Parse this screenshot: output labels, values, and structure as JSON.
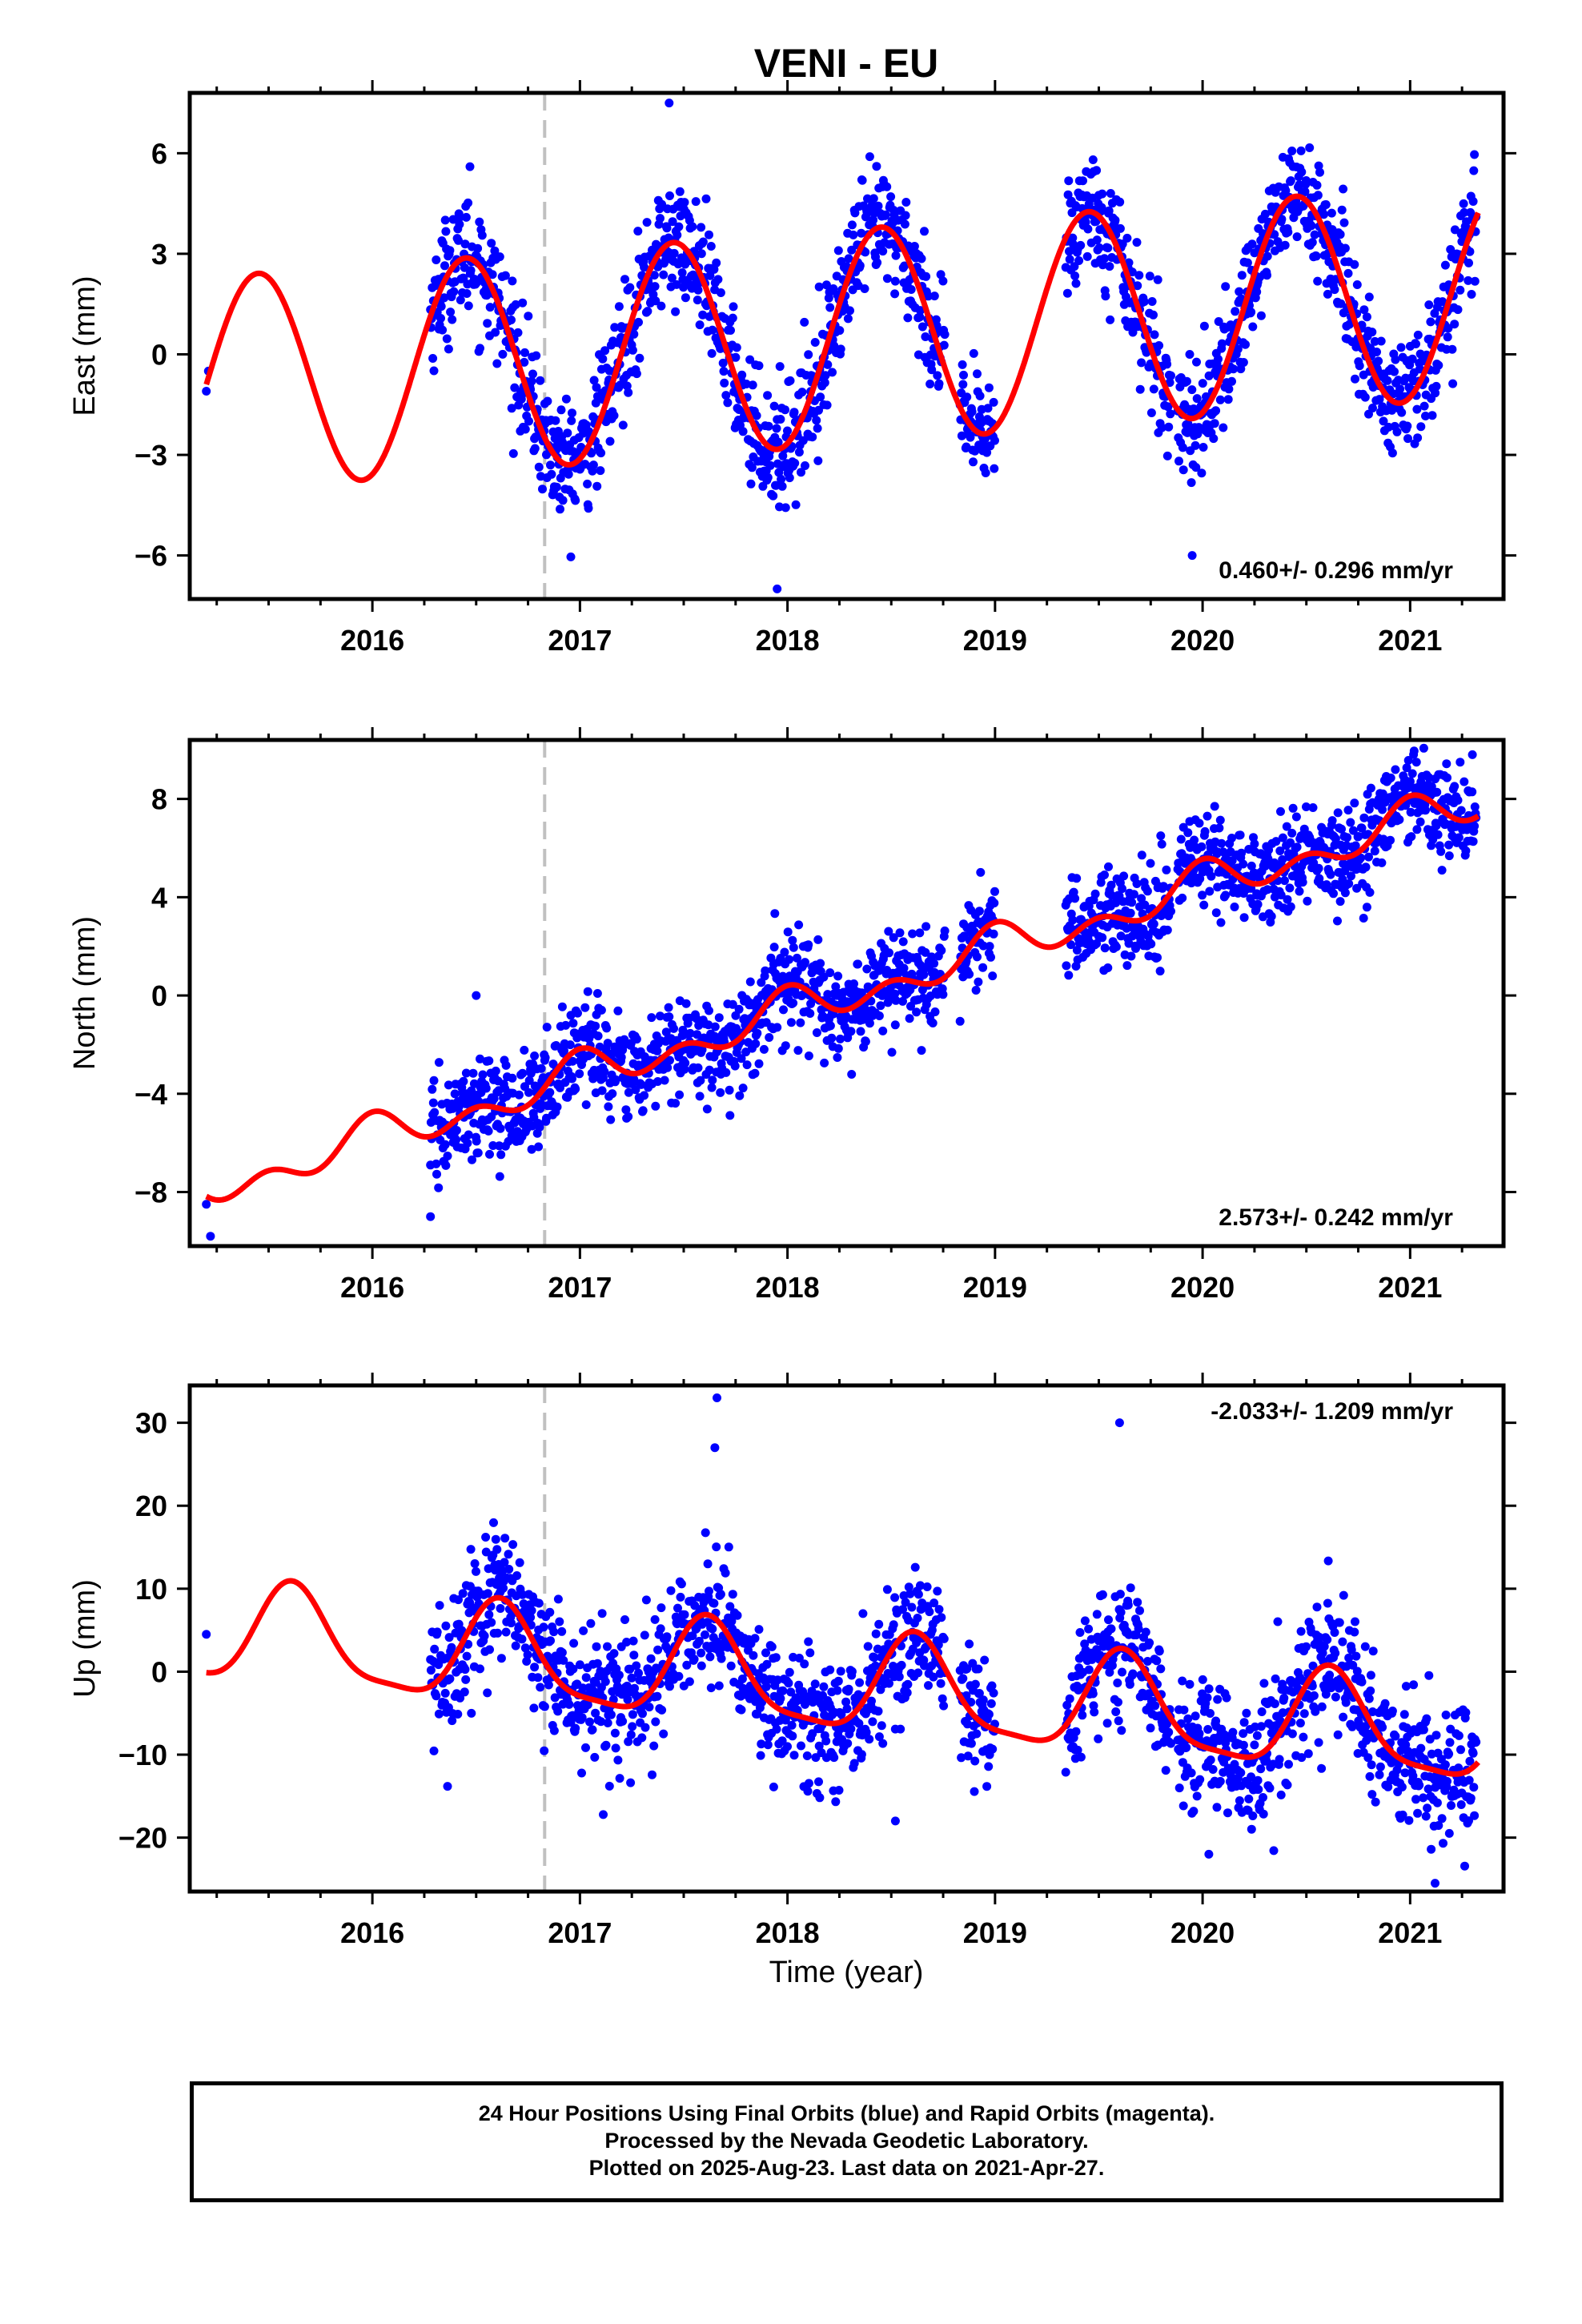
{
  "title": "VENI - EU",
  "xlabel": "Time (year)",
  "footer": {
    "line1": "24 Hour Positions Using Final Orbits (blue) and Rapid Orbits (magenta).",
    "line2": "Processed by the Nevada Geodetic Laboratory.",
    "line3": "Plotted on 2025-Aug-23. Last data on 2021-Apr-27."
  },
  "colors": {
    "data": "#0000ff",
    "model": "#ff0000",
    "event_line": "#c0c0c0",
    "axes": "#000000"
  },
  "chart_data": [
    {
      "type": "scatter",
      "component": "east",
      "ylabel": "East (mm)",
      "rate_label": "0.460+/- 0.296 mm/yr",
      "rate": 0.46,
      "xlim": [
        2015.12,
        2021.45
      ],
      "ylim": [
        -7.3,
        7.8
      ],
      "yticks": [
        -6,
        -3,
        0,
        3,
        6
      ],
      "yticklabels": [
        "−6",
        "−3",
        "0",
        "3",
        "6"
      ],
      "xticks": [
        2016,
        2017,
        2018,
        2019,
        2020,
        2021
      ],
      "xticklabels": [
        "2016",
        "2017",
        "2018",
        "2019",
        "2020",
        "2021"
      ],
      "event_line_x": 2016.83,
      "model": {
        "offset": -0.9,
        "amp1": 3.2,
        "phase1_peak": 2016.45,
        "amp2": 0.0,
        "phase2_peak": 0
      },
      "data_start": 2016.28,
      "data_end": 2021.32,
      "gaps": [
        [
          2018.76,
          2018.83
        ],
        [
          2019.0,
          2019.34
        ],
        [
          2019.85,
          2019.88
        ]
      ],
      "noise_sd": 0.9,
      "outliers": [
        [
          2015.2,
          -1.1
        ],
        [
          2015.21,
          -0.5
        ],
        [
          2017.43,
          7.5
        ],
        [
          2017.95,
          -7.0
        ],
        [
          2019.95,
          -6.0
        ],
        [
          2016.47,
          5.6
        ]
      ]
    },
    {
      "type": "scatter",
      "component": "north",
      "ylabel": "North (mm)",
      "rate_label": "2.573+/- 0.242 mm/yr",
      "rate": 2.573,
      "xlim": [
        2015.12,
        2021.45
      ],
      "ylim": [
        -10.2,
        10.4
      ],
      "yticks": [
        -8,
        -4,
        0,
        4,
        8
      ],
      "yticklabels": [
        "−8",
        "−4",
        "0",
        "4",
        "8"
      ],
      "xticks": [
        2016,
        2017,
        2018,
        2019,
        2020,
        2021
      ],
      "xticklabels": [
        "2016",
        "2017",
        "2018",
        "2019",
        "2020",
        "2021"
      ],
      "event_line_x": 2016.83,
      "model": {
        "offset": -7.9,
        "amp1": 0.55,
        "phase1_peak": 2016.0,
        "amp2": 0.55,
        "phase2_peak": 2016.0
      },
      "data_start": 2016.28,
      "data_end": 2021.32,
      "gaps": [
        [
          2018.76,
          2018.83
        ],
        [
          2019.0,
          2019.34
        ],
        [
          2019.85,
          2019.88
        ]
      ],
      "noise_sd": 1.0,
      "outliers": [
        [
          2015.2,
          -8.5
        ],
        [
          2015.22,
          -9.8
        ],
        [
          2016.28,
          -9.0
        ],
        [
          2016.5,
          0.0
        ],
        [
          2021.3,
          9.8
        ]
      ]
    },
    {
      "type": "scatter",
      "component": "up",
      "ylabel": "Up (mm)",
      "rate_label": "-2.033+/- 1.209 mm/yr",
      "rate": -2.033,
      "xlim": [
        2015.12,
        2021.45
      ],
      "ylim": [
        -26.5,
        34.5
      ],
      "yticks": [
        -20,
        -10,
        0,
        10,
        20,
        30
      ],
      "yticklabels": [
        "−20",
        "−10",
        "0",
        "10",
        "20",
        "30"
      ],
      "xticks": [
        2016,
        2017,
        2018,
        2019,
        2020,
        2021
      ],
      "xticklabels": [
        "2016",
        "2017",
        "2018",
        "2019",
        "2020",
        "2021"
      ],
      "event_line_x": 2016.83,
      "model": {
        "offset": 4.5,
        "amp1": 5.8,
        "phase1_peak": 2016.62,
        "amp2": 1.5,
        "phase2_peak": 2016.6
      },
      "data_start": 2016.28,
      "data_end": 2021.32,
      "gaps": [
        [
          2018.76,
          2018.83
        ],
        [
          2019.0,
          2019.34
        ],
        [
          2019.85,
          2019.88
        ]
      ],
      "noise_sd": 4.0,
      "outliers": [
        [
          2015.2,
          4.5
        ],
        [
          2017.66,
          33.0
        ],
        [
          2019.6,
          30.0
        ],
        [
          2017.65,
          27.0
        ],
        [
          2018.52,
          -18.0
        ],
        [
          2020.03,
          -22.0
        ],
        [
          2021.12,
          -25.5
        ]
      ]
    }
  ]
}
